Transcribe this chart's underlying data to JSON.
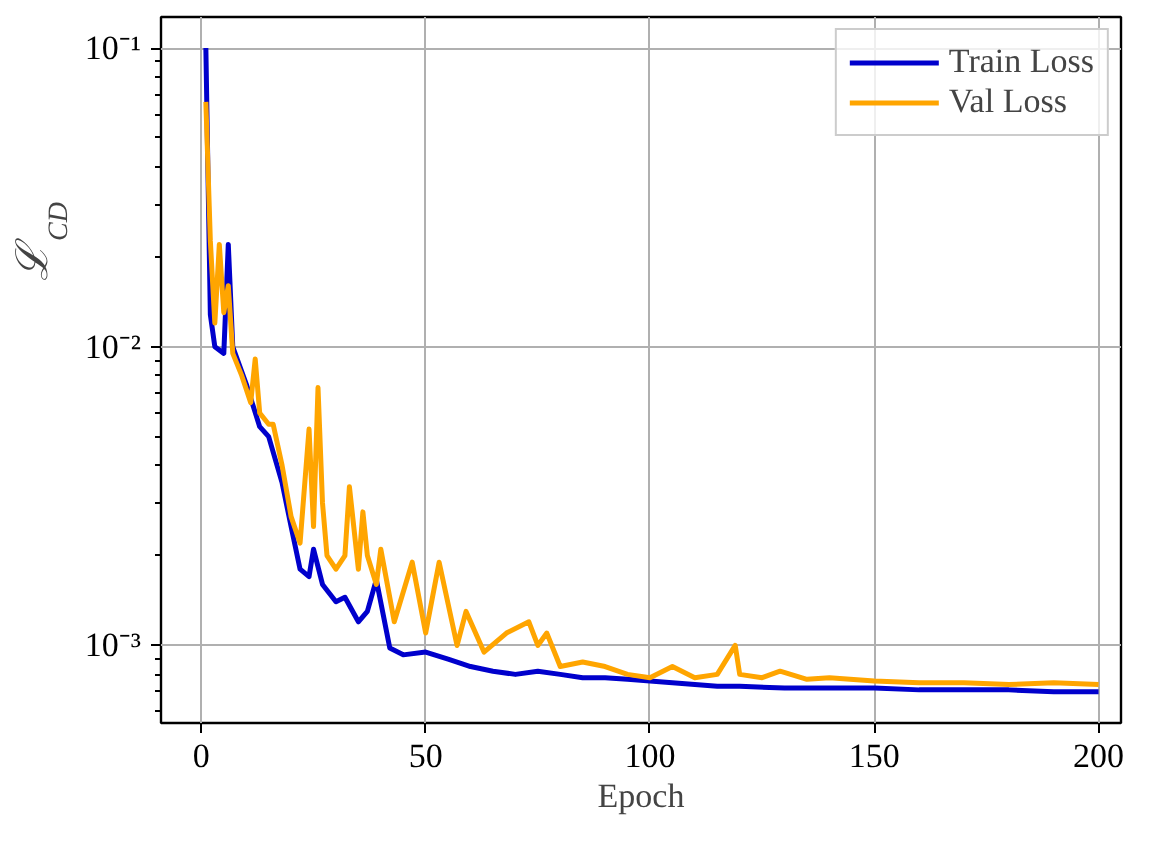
{
  "chart_data": {
    "type": "line",
    "xlabel": "Epoch",
    "ylabel": "ℒ$_{CD}$",
    "log": "y",
    "grid": true,
    "legend": "top right",
    "xlim": [
      -9,
      205
    ],
    "ylim": [
      0.00055,
      0.127
    ],
    "xticks": [
      0,
      50,
      100,
      150,
      200
    ],
    "yticks": [
      {
        "value": 0.001,
        "label": "10⁻³"
      },
      {
        "value": 0.01,
        "label": "10⁻²"
      },
      {
        "value": 0.1,
        "label": "10⁻¹"
      }
    ],
    "series": [
      {
        "name": "Train Loss",
        "color": "#0000cc",
        "x": [
          1,
          2,
          3,
          5,
          6,
          7,
          10,
          13,
          15,
          18,
          20,
          22,
          24,
          25,
          27,
          30,
          32,
          35,
          37,
          39,
          42,
          45,
          50,
          55,
          60,
          65,
          70,
          75,
          80,
          85,
          90,
          95,
          100,
          105,
          110,
          115,
          120,
          130,
          140,
          150,
          160,
          170,
          180,
          190,
          200
        ],
        "values": [
          0.1,
          0.0128,
          0.01,
          0.0095,
          0.022,
          0.01,
          0.0075,
          0.0054,
          0.005,
          0.0035,
          0.0025,
          0.0018,
          0.0017,
          0.0021,
          0.0016,
          0.0014,
          0.00145,
          0.0012,
          0.0013,
          0.00166,
          0.00098,
          0.00093,
          0.00095,
          0.0009,
          0.00085,
          0.00082,
          0.0008,
          0.00082,
          0.0008,
          0.00078,
          0.00078,
          0.00077,
          0.00076,
          0.00075,
          0.00074,
          0.00073,
          0.00073,
          0.00072,
          0.00072,
          0.00072,
          0.00071,
          0.00071,
          0.00071,
          0.0007,
          0.0007
        ]
      },
      {
        "name": "Val Loss",
        "color": "#ffa500",
        "x": [
          1,
          2,
          3,
          4,
          5,
          6,
          7,
          9,
          11,
          12,
          13,
          15,
          16,
          18,
          20,
          22,
          24,
          25,
          26,
          27,
          28,
          30,
          32,
          33,
          35,
          36,
          37,
          39,
          40,
          43,
          47,
          50,
          53,
          57,
          59,
          63,
          68,
          73,
          75,
          77,
          80,
          85,
          90,
          95,
          100,
          105,
          110,
          115,
          119,
          120,
          125,
          129,
          135,
          140,
          150,
          160,
          170,
          180,
          190,
          200
        ],
        "values": [
          0.066,
          0.0226,
          0.012,
          0.022,
          0.013,
          0.016,
          0.0095,
          0.008,
          0.0065,
          0.0091,
          0.006,
          0.0055,
          0.0055,
          0.004,
          0.0027,
          0.0022,
          0.0053,
          0.0025,
          0.0073,
          0.003,
          0.002,
          0.0018,
          0.002,
          0.0034,
          0.0018,
          0.0028,
          0.002,
          0.0016,
          0.0021,
          0.0012,
          0.0019,
          0.0011,
          0.0019,
          0.001,
          0.0013,
          0.00095,
          0.0011,
          0.0012,
          0.001,
          0.0011,
          0.00085,
          0.00088,
          0.00085,
          0.0008,
          0.00078,
          0.00085,
          0.00078,
          0.0008,
          0.001,
          0.0008,
          0.00078,
          0.00082,
          0.00077,
          0.00078,
          0.00076,
          0.00075,
          0.00075,
          0.00074,
          0.00075,
          0.00074
        ]
      }
    ]
  }
}
